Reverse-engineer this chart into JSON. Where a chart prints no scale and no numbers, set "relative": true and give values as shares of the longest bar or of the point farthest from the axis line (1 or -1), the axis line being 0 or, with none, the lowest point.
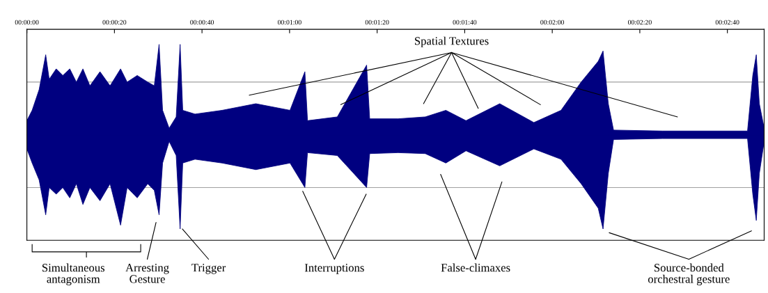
{
  "chart_data": {
    "type": "area",
    "relative": true,
    "x": [
      0,
      1.2,
      2.8,
      4.3,
      5.1,
      6.7,
      8.2,
      9.8,
      11.3,
      12.8,
      14.4,
      16.7,
      19.0,
      21.4,
      22.9,
      25.2,
      27.6,
      29.1,
      30.2,
      31.0,
      32.5,
      34.1,
      35.0,
      35.6,
      38.4,
      44.6,
      52.3,
      60.1,
      63.5,
      64.1,
      70.9,
      77.6,
      78.3,
      84.8,
      91.0,
      95.7,
      100.3,
      108.0,
      115.8,
      122.0,
      126.6,
      130.5,
      131.6,
      132.8,
      134.0,
      145.2,
      164.6,
      165.8,
      166.6,
      167.3,
      168.4
    ],
    "series": [
      {
        "color": "#000080",
        "values": [
          0.15,
          0.26,
          0.48,
          0.85,
          0.59,
          0.7,
          0.63,
          0.7,
          0.56,
          0.7,
          0.52,
          0.67,
          0.52,
          0.7,
          0.56,
          0.63,
          0.56,
          0.52,
          0.96,
          0.26,
          0.07,
          0.19,
          0.96,
          0.26,
          0.22,
          0.26,
          0.33,
          0.26,
          0.67,
          0.15,
          0.19,
          0.74,
          0.17,
          0.17,
          0.19,
          0.26,
          0.15,
          0.33,
          0.13,
          0.26,
          0.56,
          0.78,
          0.89,
          0.33,
          0.05,
          0.04,
          0.04,
          0.63,
          0.85,
          0.33,
          0.07
        ]
      },
      {
        "color": "#000080",
        "values": [
          -0.15,
          -0.3,
          -0.48,
          -0.85,
          -0.56,
          -0.63,
          -0.56,
          -0.67,
          -0.52,
          -0.74,
          -0.56,
          -0.7,
          -0.52,
          -0.96,
          -0.56,
          -0.67,
          -0.52,
          -0.59,
          -0.85,
          -0.3,
          -0.07,
          -0.22,
          -1.0,
          -0.3,
          -0.26,
          -0.3,
          -0.37,
          -0.3,
          -0.56,
          -0.19,
          -0.22,
          -0.56,
          -0.2,
          -0.19,
          -0.2,
          -0.3,
          -0.17,
          -0.33,
          -0.15,
          -0.26,
          -0.52,
          -0.78,
          -1.0,
          -0.41,
          -0.05,
          -0.04,
          -0.04,
          -0.63,
          -0.91,
          -0.41,
          -0.07
        ]
      }
    ],
    "xlim": [
      0,
      168.4
    ],
    "xticks": [
      {
        "value": 0,
        "label": "00:00:00"
      },
      {
        "value": 20,
        "label": "00:00:20"
      },
      {
        "value": 40,
        "label": "00:00:40"
      },
      {
        "value": 60,
        "label": "00:01:00"
      },
      {
        "value": 80,
        "label": "00:01:20"
      },
      {
        "value": 100,
        "label": "00:01:40"
      },
      {
        "value": 120,
        "label": "00:02:00"
      },
      {
        "value": 140,
        "label": "00:02:20"
      },
      {
        "value": 160,
        "label": "00:02:40"
      }
    ],
    "ref_lines": [
      {
        "axis": "y",
        "value": 0,
        "color": "#000080"
      },
      {
        "axis": "y",
        "value": 0.56,
        "color": "#a0a0a0"
      },
      {
        "axis": "y",
        "value": -0.56,
        "color": "#a0a0a0"
      }
    ],
    "annotations": [
      "Spatial Textures",
      "Simultaneous\nantagonism",
      "Arresting\nGesture",
      "Trigger",
      "Interruptions",
      "False-climaxes",
      "Source-bonded\norchestral gesture"
    ]
  }
}
